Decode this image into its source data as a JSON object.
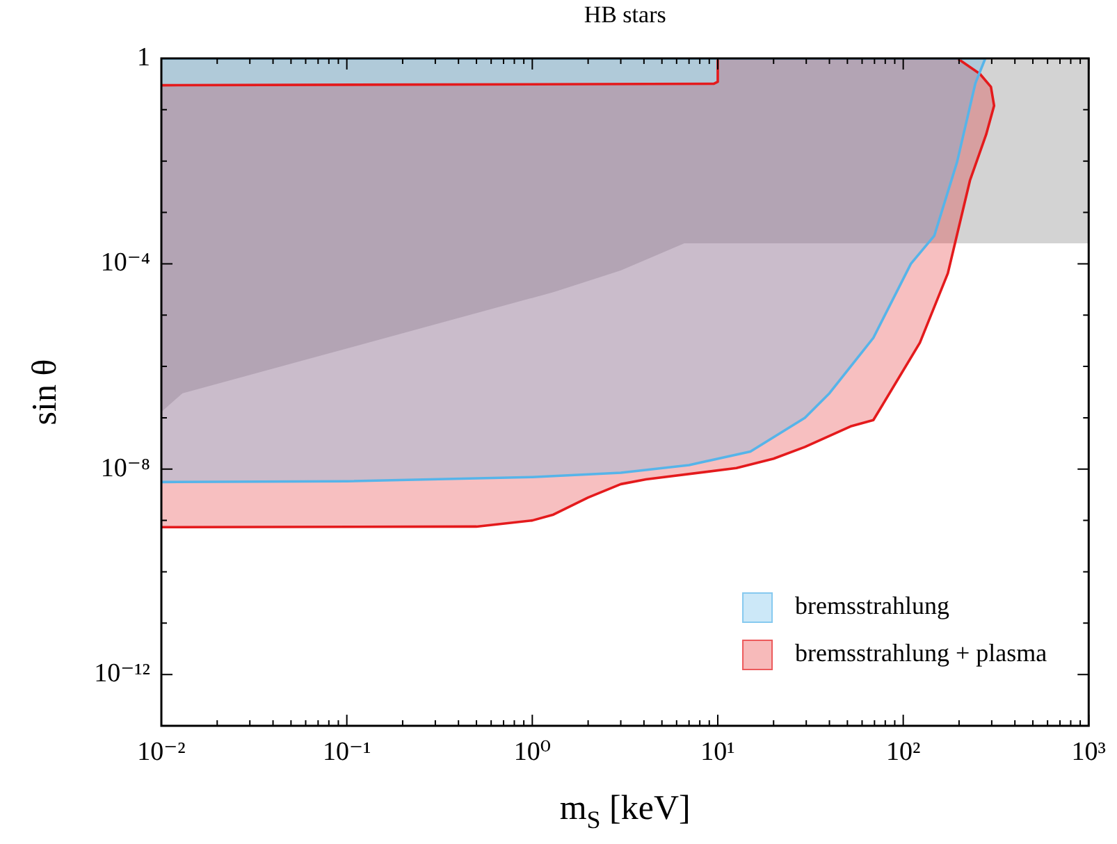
{
  "chart_data": {
    "type": "area",
    "title": "HB stars",
    "xlabel": "m$_{S}$ [keV]",
    "ylabel": "sin θ",
    "log": "xy",
    "xlim": [
      0.01,
      1000
    ],
    "ylim": [
      1e-13,
      1
    ],
    "xticks": [
      {
        "value": 0.01,
        "label": "10⁻²"
      },
      {
        "value": 0.02,
        "label": null
      },
      {
        "value": 0.03,
        "label": null
      },
      {
        "value": 0.04,
        "label": null
      },
      {
        "value": 0.05,
        "label": null
      },
      {
        "value": 0.06,
        "label": null
      },
      {
        "value": 0.07,
        "label": null
      },
      {
        "value": 0.08,
        "label": null
      },
      {
        "value": 0.09,
        "label": null
      },
      {
        "value": 0.1,
        "label": "10⁻¹"
      },
      {
        "value": 0.2,
        "label": null
      },
      {
        "value": 0.3,
        "label": null
      },
      {
        "value": 0.4,
        "label": null
      },
      {
        "value": 0.5,
        "label": null
      },
      {
        "value": 0.6,
        "label": null
      },
      {
        "value": 0.7,
        "label": null
      },
      {
        "value": 0.8,
        "label": null
      },
      {
        "value": 0.9,
        "label": null
      },
      {
        "value": 1,
        "label": "10⁰"
      },
      {
        "value": 2,
        "label": null
      },
      {
        "value": 3,
        "label": null
      },
      {
        "value": 4,
        "label": null
      },
      {
        "value": 5,
        "label": null
      },
      {
        "value": 6,
        "label": null
      },
      {
        "value": 7,
        "label": null
      },
      {
        "value": 8,
        "label": null
      },
      {
        "value": 9,
        "label": null
      },
      {
        "value": 10,
        "label": "10¹"
      },
      {
        "value": 20,
        "label": null
      },
      {
        "value": 30,
        "label": null
      },
      {
        "value": 40,
        "label": null
      },
      {
        "value": 50,
        "label": null
      },
      {
        "value": 60,
        "label": null
      },
      {
        "value": 70,
        "label": null
      },
      {
        "value": 80,
        "label": null
      },
      {
        "value": 90,
        "label": null
      },
      {
        "value": 100,
        "label": "10²"
      },
      {
        "value": 200,
        "label": null
      },
      {
        "value": 300,
        "label": null
      },
      {
        "value": 400,
        "label": null
      },
      {
        "value": 500,
        "label": null
      },
      {
        "value": 600,
        "label": null
      },
      {
        "value": 700,
        "label": null
      },
      {
        "value": 800,
        "label": null
      },
      {
        "value": 900,
        "label": null
      },
      {
        "value": 1000,
        "label": "10³"
      }
    ],
    "yticks": [
      {
        "value": 1e-13,
        "label": null
      },
      {
        "value": 1e-12,
        "label": "10⁻¹²"
      },
      {
        "value": 1e-11,
        "label": null
      },
      {
        "value": 1e-10,
        "label": null
      },
      {
        "value": 1e-09,
        "label": null
      },
      {
        "value": 1e-08,
        "label": "10⁻⁸"
      },
      {
        "value": 1e-07,
        "label": null
      },
      {
        "value": 1e-06,
        "label": null
      },
      {
        "value": 1e-05,
        "label": null
      },
      {
        "value": 0.0001,
        "label": "10⁻⁴"
      },
      {
        "value": 0.001,
        "label": null
      },
      {
        "value": 0.01,
        "label": null
      },
      {
        "value": 0.1,
        "label": null
      },
      1
    ],
    "legend": "bottom right",
    "series": [
      {
        "name": "bremsstrahlung",
        "color": "#56b4e9",
        "x": [
          0.01,
          0.1,
          1,
          3,
          7,
          15,
          29.5,
          40,
          69,
          110,
          147,
          195,
          245,
          277,
          0.01
        ],
        "values": [
          5.6e-09,
          5.8e-09,
          7e-09,
          8.5e-09,
          1.2e-08,
          2.2e-08,
          1e-07,
          3e-07,
          3.6e-06,
          0.0001,
          0.00035,
          0.0095,
          0.33,
          1,
          1
        ]
      },
      {
        "name": "bremsstrahlung + plasma",
        "color": "#e41a1c",
        "x": [
          0.01,
          0.5,
          1,
          1.3,
          2,
          3,
          4.1,
          12.6,
          20,
          29.5,
          52,
          69,
          123,
          174,
          229,
          280,
          309,
          297,
          259,
          196,
          10,
          10,
          9.5,
          0.01
        ],
        "values": [
          7.4e-10,
          7.6e-10,
          1e-09,
          1.3e-09,
          2.8e-09,
          5.1e-09,
          6.3e-09,
          1.05e-08,
          1.6e-08,
          2.7e-08,
          6.8e-08,
          9e-08,
          2.9e-06,
          6.5e-05,
          0.0042,
          0.033,
          0.12,
          0.28,
          0.5,
          1,
          1,
          0.35,
          0.32,
          0.3
        ]
      },
      {
        "color": "#a8a8a8",
        "x": [
          0.01,
          0.013,
          1.3,
          3,
          6.6,
          1000,
          1000,
          0.01
        ],
        "values": [
          1.3e-07,
          3e-07,
          2.8e-05,
          7.4e-05,
          0.00025,
          0.00025,
          1,
          1
        ]
      }
    ]
  }
}
